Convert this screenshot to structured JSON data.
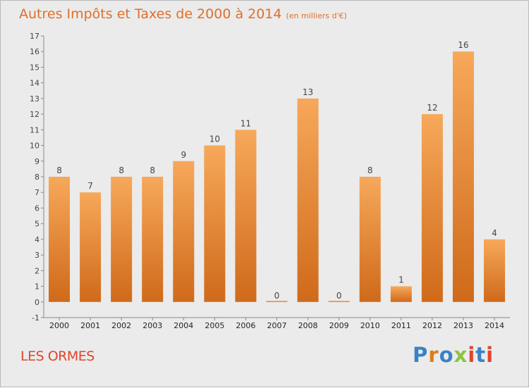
{
  "header": {
    "title": "Autres Impôts et Taxes de 2000 à 2014",
    "unit": "(en milliers d'€)"
  },
  "footer": {
    "place": "LES ORMES",
    "brand": "Proxiti",
    "brand_colors": [
      "#3a82c4",
      "#e07b1e",
      "#3a82c4",
      "#8bc440",
      "#e0462a",
      "#3a82c4",
      "#e0462a"
    ]
  },
  "colors": {
    "bar_top": "#f7a85a",
    "bar_bottom": "#cf6a1a",
    "title": "#e06f2a",
    "place": "#e0462a"
  },
  "chart_data": {
    "type": "bar",
    "categories": [
      "2000",
      "2001",
      "2002",
      "2003",
      "2004",
      "2005",
      "2006",
      "2007",
      "2008",
      "2009",
      "2010",
      "2011",
      "2012",
      "2013",
      "2014"
    ],
    "values": [
      8,
      7,
      8,
      8,
      9,
      10,
      11,
      0,
      13,
      0,
      8,
      1,
      12,
      16,
      4
    ],
    "y_ticks": [
      -1,
      0,
      1,
      2,
      3,
      4,
      5,
      6,
      7,
      8,
      9,
      10,
      11,
      12,
      13,
      14,
      15,
      16,
      17
    ],
    "ylim": [
      -1,
      17
    ],
    "grid": false,
    "legend": "none"
  }
}
